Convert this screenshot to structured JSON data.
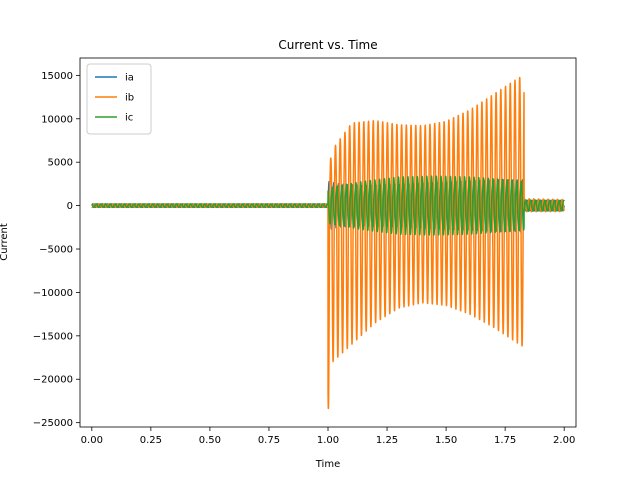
{
  "chart_data": {
    "type": "line",
    "title": "Current vs. Time",
    "xlabel": "Time",
    "ylabel": "Current",
    "xlim": [
      -0.05,
      2.05
    ],
    "ylim": [
      -25500,
      17000
    ],
    "xticks": [
      0.0,
      0.25,
      0.5,
      0.75,
      1.0,
      1.25,
      1.5,
      1.75,
      2.0
    ],
    "xtick_labels": [
      "0.00",
      "0.25",
      "0.50",
      "0.75",
      "1.00",
      "1.25",
      "1.50",
      "1.75",
      "2.00"
    ],
    "yticks": [
      -25000,
      -20000,
      -15000,
      -10000,
      -5000,
      0,
      5000,
      10000,
      15000
    ],
    "ytick_labels": [
      "−25000",
      "−20000",
      "−15000",
      "−10000",
      "−5000",
      "0",
      "5000",
      "10000",
      "15000"
    ],
    "grid": false,
    "legend_position": "top-left",
    "frequency_hz": 50,
    "events": {
      "fault_start": 1.0,
      "fault_end": 1.83
    },
    "series": [
      {
        "name": "ia",
        "color": "#1f77b4",
        "envelope": {
          "t": [
            0.0,
            1.0,
            1.0001,
            1.05,
            1.15,
            1.3,
            1.45,
            1.6,
            1.75,
            1.83,
            1.8301,
            2.0
          ],
          "amplitude": [
            200,
            200,
            2800,
            2500,
            2300,
            2400,
            2600,
            2800,
            3000,
            3000,
            600,
            600
          ]
        }
      },
      {
        "name": "ib",
        "color": "#ff7f0e",
        "envelope": {
          "t": [
            0.0,
            1.0,
            1.0001,
            1.02,
            1.1,
            1.2,
            1.3,
            1.4,
            1.5,
            1.6,
            1.7,
            1.8,
            1.83,
            1.8301,
            2.0
          ],
          "upper": [
            200,
            200,
            4000,
            6500,
            9500,
            9800,
            9300,
            9200,
            9700,
            11000,
            12800,
            14600,
            15000,
            800,
            700
          ],
          "lower": [
            -200,
            -200,
            -23800,
            -18000,
            -16000,
            -13500,
            -11800,
            -11200,
            -11500,
            -12500,
            -14000,
            -15800,
            -16300,
            -700,
            -700
          ]
        }
      },
      {
        "name": "ic",
        "color": "#2ca02c",
        "envelope": {
          "t": [
            0.0,
            1.0,
            1.0001,
            1.05,
            1.15,
            1.3,
            1.45,
            1.6,
            1.75,
            1.83,
            1.8301,
            2.0
          ],
          "amplitude": [
            200,
            200,
            2000,
            2300,
            2800,
            3300,
            3400,
            3300,
            3000,
            2800,
            650,
            600
          ]
        }
      }
    ]
  }
}
